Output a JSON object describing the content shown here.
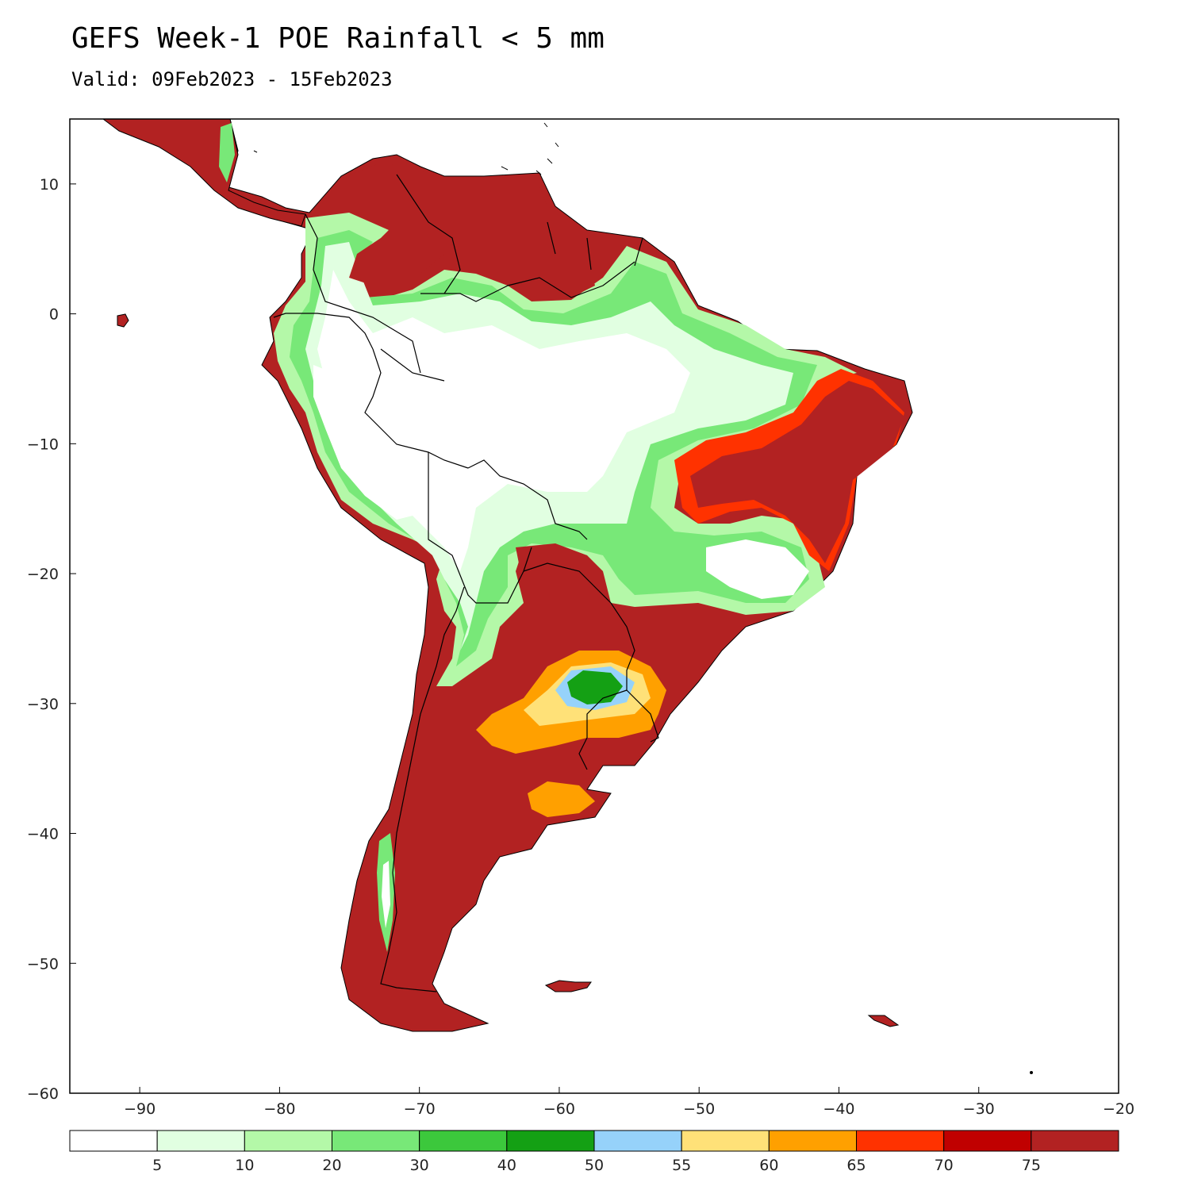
{
  "title": "GEFS Week-1 POE Rainfall < 5 mm",
  "subtitle": "Valid: 09Feb2023 - 15Feb2023",
  "map": {
    "lon_range": [
      -95,
      -20
    ],
    "lat_range": [
      -60,
      15
    ],
    "x_ticks": [
      "-90",
      "-80",
      "-70",
      "-60",
      "-50",
      "-40",
      "-30",
      "-20"
    ],
    "y_ticks": [
      "10",
      "0",
      "-10",
      "-20",
      "-30",
      "-40",
      "-50",
      "-60"
    ],
    "x_tick_values": [
      -90,
      -80,
      -70,
      -60,
      -50,
      -40,
      -30,
      -20
    ],
    "y_tick_values": [
      10,
      0,
      -10,
      -20,
      -30,
      -40,
      -50,
      -60
    ]
  },
  "colorbar": {
    "colors": [
      "#ffffff",
      "#e1ffe1",
      "#b4f8a8",
      "#78e878",
      "#3cc83c",
      "#14a014",
      "#96d2fa",
      "#ffe178",
      "#ffa000",
      "#ff3200",
      "#c00000",
      "#b22222"
    ],
    "labels": [
      "5",
      "10",
      "20",
      "30",
      "40",
      "50",
      "55",
      "60",
      "65",
      "70",
      "75"
    ]
  },
  "colors": {
    "dry": "#b22222",
    "wet": "#ffffff",
    "land_outline": "#000000"
  }
}
